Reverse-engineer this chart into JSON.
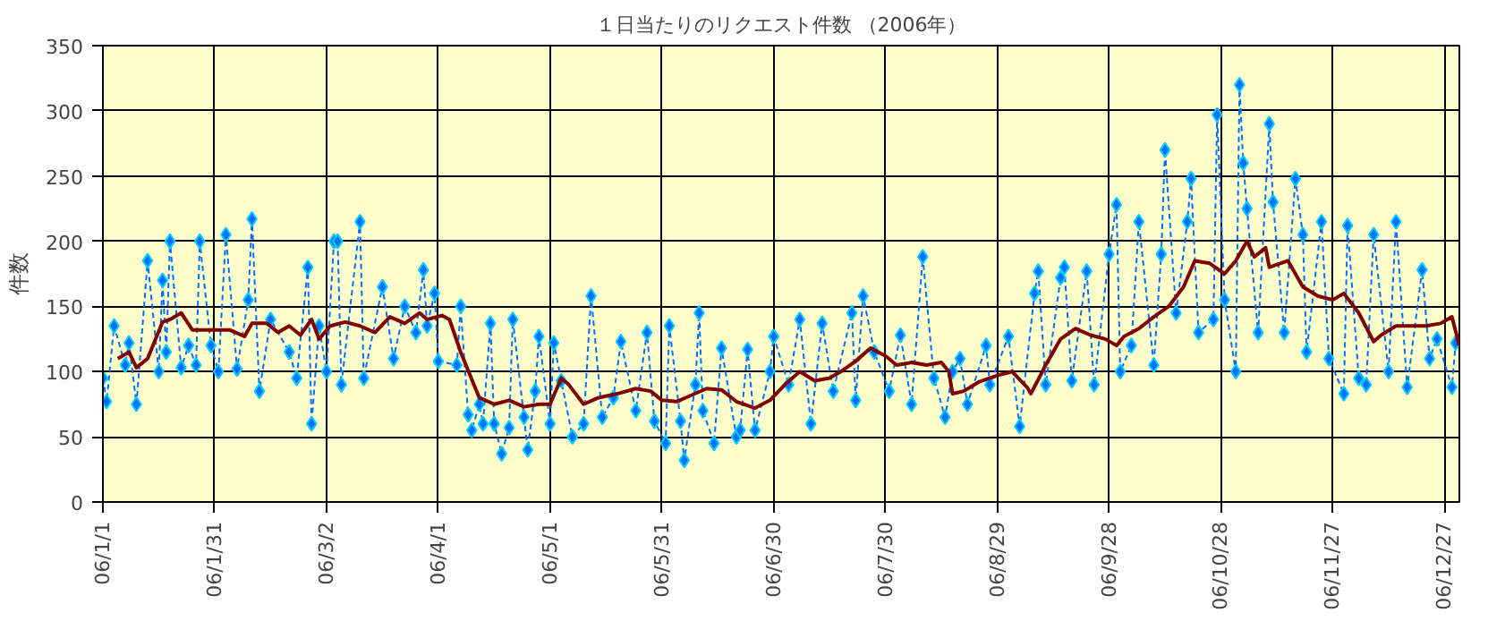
{
  "chart_data": {
    "type": "line",
    "title": "１日当たりのリクエスト件数 （2006年）",
    "ylabel": "件数",
    "xlim": [
      "2006-01-01",
      "2006-12-31"
    ],
    "xticks": [
      {
        "value": "2006-01-01",
        "label": "06/1/1"
      },
      {
        "value": "2006-01-31",
        "label": "06/1/31"
      },
      {
        "value": "2006-03-02",
        "label": "06/3/2"
      },
      {
        "value": "2006-04-01",
        "label": "06/4/1"
      },
      {
        "value": "2006-05-01",
        "label": "06/5/1"
      },
      {
        "value": "2006-05-31",
        "label": "06/5/31"
      },
      {
        "value": "2006-06-30",
        "label": "06/6/30"
      },
      {
        "value": "2006-07-30",
        "label": "06/7/30"
      },
      {
        "value": "2006-08-29",
        "label": "06/8/29"
      },
      {
        "value": "2006-09-28",
        "label": "06/9/28"
      },
      {
        "value": "2006-10-28",
        "label": "06/10/28"
      },
      {
        "value": "2006-11-27",
        "label": "06/11/27"
      },
      {
        "value": "2006-12-27",
        "label": "06/12/27"
      }
    ],
    "ylim": [
      0,
      350
    ],
    "yticks": [
      0,
      50,
      100,
      150,
      200,
      250,
      300,
      350
    ],
    "grid": true,
    "series": [
      {
        "color": "#0070ff",
        "marker": "diamond",
        "line_style": "dashed",
        "x": [
          "2006-01-01",
          "2006-01-02",
          "2006-01-04",
          "2006-01-07",
          "2006-01-08",
          "2006-01-10",
          "2006-01-13",
          "2006-01-16",
          "2006-01-17",
          "2006-01-18",
          "2006-01-19",
          "2006-01-22",
          "2006-01-24",
          "2006-01-26",
          "2006-01-27",
          "2006-01-30",
          "2006-02-01",
          "2006-02-03",
          "2006-02-06",
          "2006-02-09",
          "2006-02-10",
          "2006-02-12",
          "2006-02-15",
          "2006-02-20",
          "2006-02-22",
          "2006-02-25",
          "2006-02-26",
          "2006-02-28",
          "2006-03-02",
          "2006-03-04",
          "2006-03-05",
          "2006-03-06",
          "2006-03-11",
          "2006-03-12",
          "2006-03-17",
          "2006-03-20",
          "2006-03-23",
          "2006-03-26",
          "2006-03-28",
          "2006-03-29",
          "2006-03-31",
          "2006-04-01",
          "2006-04-06",
          "2006-04-07",
          "2006-04-09",
          "2006-04-10",
          "2006-04-12",
          "2006-04-13",
          "2006-04-15",
          "2006-04-16",
          "2006-04-18",
          "2006-04-20",
          "2006-04-21",
          "2006-04-24",
          "2006-04-25",
          "2006-04-27",
          "2006-04-28",
          "2006-05-01",
          "2006-05-02",
          "2006-05-04",
          "2006-05-07",
          "2006-05-10",
          "2006-05-12",
          "2006-05-15",
          "2006-05-18",
          "2006-05-20",
          "2006-05-24",
          "2006-05-27",
          "2006-05-29",
          "2006-06-01",
          "2006-06-02",
          "2006-06-05",
          "2006-06-06",
          "2006-06-09",
          "2006-06-10",
          "2006-06-11",
          "2006-06-14",
          "2006-06-16",
          "2006-06-20",
          "2006-06-21",
          "2006-06-23",
          "2006-06-25",
          "2006-06-29",
          "2006-06-30",
          "2006-07-04",
          "2006-07-07",
          "2006-07-10",
          "2006-07-13",
          "2006-07-16",
          "2006-07-21",
          "2006-07-22",
          "2006-07-24",
          "2006-07-27",
          "2006-07-31",
          "2006-08-03",
          "2006-08-06",
          "2006-08-09",
          "2006-08-12",
          "2006-08-15",
          "2006-08-17",
          "2006-08-19",
          "2006-08-21",
          "2006-08-26",
          "2006-08-27",
          "2006-09-01",
          "2006-09-04",
          "2006-09-08",
          "2006-09-09",
          "2006-09-11",
          "2006-09-15",
          "2006-09-16",
          "2006-09-18",
          "2006-09-22",
          "2006-09-24",
          "2006-09-28",
          "2006-09-30",
          "2006-10-01",
          "2006-10-04",
          "2006-10-06",
          "2006-10-10",
          "2006-10-12",
          "2006-10-13",
          "2006-10-16",
          "2006-10-19",
          "2006-10-20",
          "2006-10-22",
          "2006-10-26",
          "2006-10-27",
          "2006-10-29",
          "2006-11-01",
          "2006-11-02",
          "2006-11-03",
          "2006-11-04",
          "2006-11-07",
          "2006-11-10",
          "2006-11-11",
          "2006-11-14",
          "2006-11-17",
          "2006-11-19",
          "2006-11-20",
          "2006-11-24",
          "2006-11-26",
          "2006-11-30",
          "2006-12-01",
          "2006-12-04",
          "2006-12-06",
          "2006-12-08",
          "2006-12-12",
          "2006-12-14",
          "2006-12-17",
          "2006-12-21",
          "2006-12-23",
          "2006-12-25",
          "2006-12-29",
          "2006-12-30"
        ],
        "values": [
          95,
          77,
          135,
          105,
          122,
          75,
          185,
          100,
          170,
          115,
          200,
          103,
          120,
          105,
          200,
          120,
          100,
          205,
          102,
          155,
          217,
          85,
          140,
          115,
          95,
          180,
          60,
          135,
          100,
          200,
          200,
          90,
          215,
          95,
          165,
          110,
          150,
          130,
          178,
          135,
          160,
          108,
          105,
          150,
          67,
          55,
          75,
          60,
          137,
          60,
          37,
          57,
          140,
          65,
          40,
          85,
          127,
          60,
          122,
          93,
          50,
          60,
          158,
          65,
          80,
          123,
          70,
          130,
          62,
          45,
          135,
          62,
          32,
          90,
          145,
          70,
          45,
          118,
          50,
          55,
          117,
          55,
          100,
          127,
          90,
          140,
          60,
          137,
          85,
          145,
          78,
          158,
          115,
          85,
          128,
          75,
          188,
          95,
          65,
          100,
          110,
          75,
          120,
          90,
          127,
          58,
          160,
          177,
          90,
          172,
          180,
          93,
          177,
          90,
          190,
          228,
          100,
          120,
          215,
          105,
          190,
          270,
          145,
          215,
          248,
          130,
          140,
          297,
          155,
          100,
          320,
          260,
          225,
          130,
          290,
          230,
          130,
          248,
          205,
          115,
          215,
          110,
          83,
          212,
          95,
          90,
          205,
          100,
          215,
          88,
          178,
          110,
          125,
          88,
          122
        ]
      },
      {
        "color": "#800000",
        "marker": "none",
        "line_style": "solid",
        "x": [
          "2006-01-05",
          "2006-01-08",
          "2006-01-10",
          "2006-01-13",
          "2006-01-17",
          "2006-01-19",
          "2006-01-22",
          "2006-01-25",
          "2006-01-30",
          "2006-02-04",
          "2006-02-08",
          "2006-02-10",
          "2006-02-14",
          "2006-02-17",
          "2006-02-20",
          "2006-02-23",
          "2006-02-26",
          "2006-02-28",
          "2006-03-03",
          "2006-03-07",
          "2006-03-11",
          "2006-03-15",
          "2006-03-19",
          "2006-03-23",
          "2006-03-27",
          "2006-03-29",
          "2006-04-02",
          "2006-04-04",
          "2006-04-07",
          "2006-04-12",
          "2006-04-16",
          "2006-04-20",
          "2006-04-24",
          "2006-04-28",
          "2006-05-01",
          "2006-05-04",
          "2006-05-06",
          "2006-05-10",
          "2006-05-14",
          "2006-05-19",
          "2006-05-24",
          "2006-05-28",
          "2006-05-31",
          "2006-06-04",
          "2006-06-08",
          "2006-06-12",
          "2006-06-16",
          "2006-06-20",
          "2006-06-25",
          "2006-06-29",
          "2006-07-03",
          "2006-07-07",
          "2006-07-11",
          "2006-07-15",
          "2006-07-18",
          "2006-07-22",
          "2006-07-26",
          "2006-07-30",
          "2006-08-02",
          "2006-08-06",
          "2006-08-10",
          "2006-08-14",
          "2006-08-16",
          "2006-08-17",
          "2006-08-20",
          "2006-08-24",
          "2006-08-29",
          "2006-09-02",
          "2006-09-06",
          "2006-09-07",
          "2006-09-11",
          "2006-09-15",
          "2006-09-19",
          "2006-09-23",
          "2006-09-27",
          "2006-09-30",
          "2006-10-02",
          "2006-10-06",
          "2006-10-10",
          "2006-10-14",
          "2006-10-18",
          "2006-10-21",
          "2006-10-25",
          "2006-10-29",
          "2006-11-01",
          "2006-11-04",
          "2006-11-06",
          "2006-11-09",
          "2006-11-10",
          "2006-11-15",
          "2006-11-19",
          "2006-11-23",
          "2006-11-27",
          "2006-11-30",
          "2006-12-04",
          "2006-12-08",
          "2006-12-10",
          "2006-12-14",
          "2006-12-18",
          "2006-12-22",
          "2006-12-26",
          "2006-12-29",
          "2006-12-31"
        ],
        "values": [
          110,
          115,
          103,
          110,
          138,
          140,
          145,
          132,
          132,
          132,
          127,
          137,
          137,
          130,
          135,
          128,
          140,
          125,
          135,
          138,
          135,
          130,
          142,
          137,
          145,
          140,
          143,
          140,
          115,
          80,
          75,
          78,
          73,
          75,
          75,
          95,
          90,
          75,
          80,
          83,
          87,
          85,
          78,
          77,
          82,
          87,
          86,
          77,
          72,
          78,
          90,
          100,
          93,
          95,
          100,
          108,
          118,
          112,
          105,
          107,
          105,
          107,
          100,
          83,
          85,
          92,
          97,
          100,
          88,
          83,
          105,
          125,
          133,
          128,
          125,
          120,
          127,
          133,
          142,
          150,
          165,
          185,
          183,
          175,
          185,
          200,
          188,
          195,
          180,
          185,
          165,
          158,
          155,
          160,
          145,
          123,
          128,
          135,
          135,
          135,
          137,
          142,
          120
        ]
      }
    ]
  }
}
